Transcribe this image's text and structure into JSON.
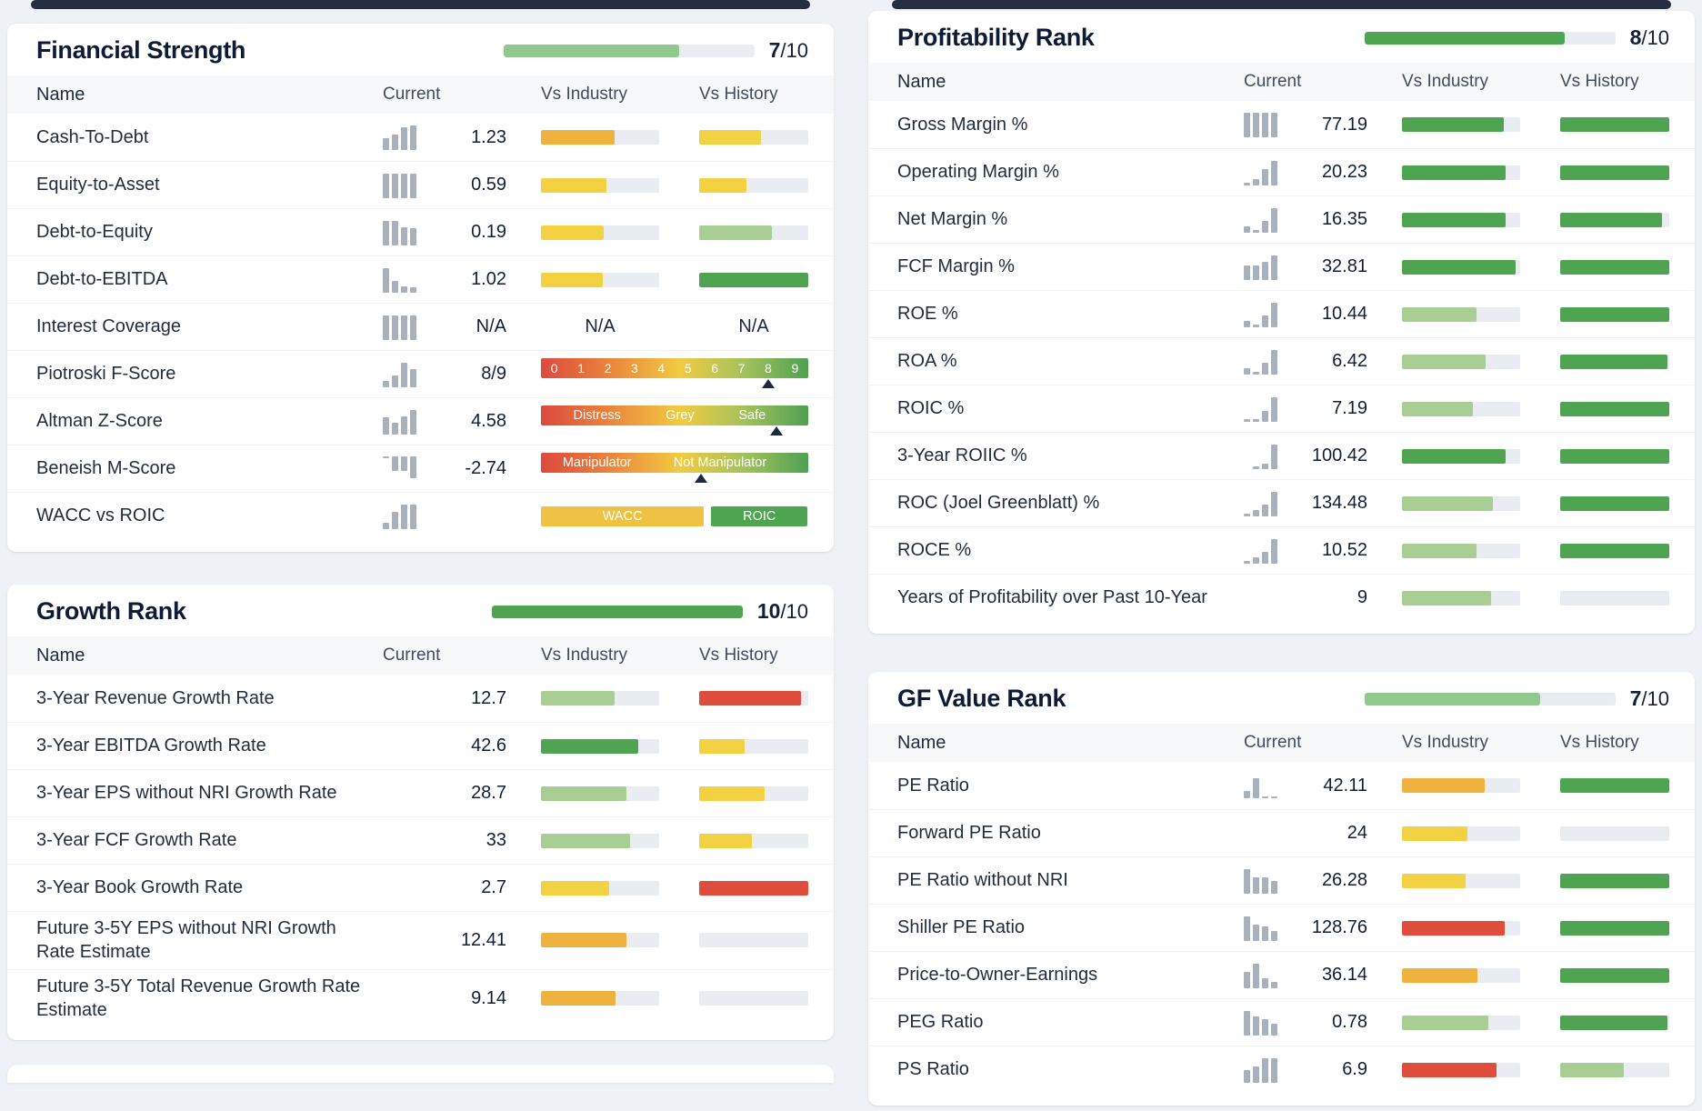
{
  "colors": {
    "green": "#4FA452",
    "lightgreen": "#A8CE93",
    "yellow": "#F2D243",
    "orange": "#F0B23E",
    "red": "#DF4E3C",
    "none": "transparent",
    "track": "#E9ECF1",
    "spark": "#A9B1BC",
    "marker": "#1C2940",
    "wacc": "#F0C244",
    "roic": "#4FA452",
    "score_lightgreen": "#8FC98C",
    "score_green": "#4FA452"
  },
  "table_headers": {
    "name": "Name",
    "current": "Current",
    "vs_industry": "Vs Industry",
    "vs_history": "Vs History"
  },
  "panels": [
    {
      "title": "Financial Strength",
      "score": "7",
      "score_suffix": "/10",
      "score_pct": 70,
      "score_color": "score_lightgreen",
      "rows": [
        {
          "name": "Cash-To-Debt",
          "spark": [
            45,
            60,
            90,
            95
          ],
          "value": "1.23",
          "industry": {
            "kind": "bar",
            "color": "orange",
            "pct": 62
          },
          "history": {
            "kind": "bar",
            "color": "yellow",
            "pct": 57
          }
        },
        {
          "name": "Equity-to-Asset",
          "spark": [
            95,
            95,
            95,
            95
          ],
          "value": "0.59",
          "industry": {
            "kind": "bar",
            "color": "yellow",
            "pct": 55
          },
          "history": {
            "kind": "bar",
            "color": "yellow",
            "pct": 43
          }
        },
        {
          "name": "Debt-to-Equity",
          "spark": [
            95,
            95,
            70,
            65
          ],
          "value": "0.19",
          "industry": {
            "kind": "bar",
            "color": "yellow",
            "pct": 53
          },
          "history": {
            "kind": "bar",
            "color": "lightgreen",
            "pct": 67
          }
        },
        {
          "name": "Debt-to-EBITDA",
          "spark": [
            95,
            45,
            22,
            20
          ],
          "value": "1.02",
          "industry": {
            "kind": "bar",
            "color": "yellow",
            "pct": 52
          },
          "history": {
            "kind": "bar",
            "color": "green",
            "pct": 100
          }
        },
        {
          "name": "Interest Coverage",
          "spark": [
            95,
            95,
            95,
            95
          ],
          "value": "N/A",
          "industry": {
            "kind": "text",
            "text": "N/A"
          },
          "history": {
            "kind": "text",
            "text": "N/A"
          }
        },
        {
          "name": "Piotroski F-Score",
          "spark": [
            25,
            45,
            95,
            70
          ],
          "value": "8/9",
          "scale": {
            "numbers": [
              "0",
              "1",
              "2",
              "3",
              "4",
              "5",
              "6",
              "7",
              "8",
              "9"
            ],
            "marker_pct": 85
          }
        },
        {
          "name": "Altman Z-Score",
          "spark": [
            65,
            45,
            70,
            95
          ],
          "value": "4.58",
          "scale": {
            "labels": [
              {
                "text": "Distress",
                "pct": 21
              },
              {
                "text": "Grey",
                "pct": 52
              },
              {
                "text": "Safe",
                "pct": 79
              }
            ],
            "marker_pct": 88
          }
        },
        {
          "name": "Beneish M-Score",
          "spark": [
            10,
            60,
            60,
            88
          ],
          "spark_inverted": true,
          "value": "-2.74",
          "scale": {
            "labels": [
              {
                "text": "Manipulator",
                "pct": 21
              },
              {
                "text": "Not Manipulator",
                "pct": 67
              }
            ],
            "marker_pct": 60
          }
        },
        {
          "name": "WACC vs ROIC",
          "spark": [
            25,
            65,
            95,
            95
          ],
          "value": "",
          "dual": {
            "left_label": "WACC",
            "right_label": "ROIC",
            "left_pct": 61,
            "right_pct": 36
          }
        }
      ]
    },
    {
      "title": "Profitability Rank",
      "score": "8",
      "score_suffix": "/10",
      "score_pct": 80,
      "score_color": "score_green",
      "rows": [
        {
          "name": "Gross Margin %",
          "spark": [
            95,
            95,
            95,
            95
          ],
          "value": "77.19",
          "industry": {
            "kind": "bar",
            "color": "green",
            "pct": 86
          },
          "history": {
            "kind": "bar",
            "color": "green",
            "pct": 100
          }
        },
        {
          "name": "Operating Margin %",
          "spark": [
            8,
            25,
            62,
            95
          ],
          "value": "20.23",
          "industry": {
            "kind": "bar",
            "color": "green",
            "pct": 88
          },
          "history": {
            "kind": "bar",
            "color": "green",
            "pct": 100
          }
        },
        {
          "name": "Net Margin %",
          "spark": [
            25,
            8,
            45,
            95
          ],
          "value": "16.35",
          "industry": {
            "kind": "bar",
            "color": "green",
            "pct": 88
          },
          "history": {
            "kind": "bar",
            "color": "green",
            "pct": 93
          }
        },
        {
          "name": "FCF Margin %",
          "spark": [
            55,
            55,
            70,
            95
          ],
          "value": "32.81",
          "industry": {
            "kind": "bar",
            "color": "green",
            "pct": 96
          },
          "history": {
            "kind": "bar",
            "color": "green",
            "pct": 100
          }
        },
        {
          "name": "ROE %",
          "spark": [
            25,
            8,
            45,
            95
          ],
          "value": "10.44",
          "industry": {
            "kind": "bar",
            "color": "lightgreen",
            "pct": 63
          },
          "history": {
            "kind": "bar",
            "color": "green",
            "pct": 100
          }
        },
        {
          "name": "ROA %",
          "spark": [
            25,
            8,
            45,
            95
          ],
          "value": "6.42",
          "industry": {
            "kind": "bar",
            "color": "lightgreen",
            "pct": 71
          },
          "history": {
            "kind": "bar",
            "color": "green",
            "pct": 98
          }
        },
        {
          "name": "ROIC %",
          "spark": [
            10,
            10,
            40,
            95
          ],
          "value": "7.19",
          "industry": {
            "kind": "bar",
            "color": "lightgreen",
            "pct": 60
          },
          "history": {
            "kind": "bar",
            "color": "green",
            "pct": 100
          }
        },
        {
          "name": "3-Year ROIIC %",
          "spark": [
            0,
            8,
            20,
            95
          ],
          "value": "100.42",
          "industry": {
            "kind": "bar",
            "color": "green",
            "pct": 88
          },
          "history": {
            "kind": "bar",
            "color": "green",
            "pct": 100
          }
        },
        {
          "name": "ROC (Joel Greenblatt) %",
          "spark": [
            10,
            22,
            45,
            95
          ],
          "value": "134.48",
          "industry": {
            "kind": "bar",
            "color": "lightgreen",
            "pct": 77
          },
          "history": {
            "kind": "bar",
            "color": "green",
            "pct": 100
          }
        },
        {
          "name": "ROCE %",
          "spark": [
            10,
            22,
            45,
            95
          ],
          "value": "10.52",
          "industry": {
            "kind": "bar",
            "color": "lightgreen",
            "pct": 63
          },
          "history": {
            "kind": "bar",
            "color": "green",
            "pct": 100
          }
        },
        {
          "name": "Years of Profitability over Past 10-Year",
          "spark": null,
          "value": "9",
          "industry": {
            "kind": "bar",
            "color": "lightgreen",
            "pct": 75
          },
          "history": {
            "kind": "bar",
            "color": "none",
            "pct": 0
          }
        }
      ]
    },
    {
      "title": "Growth Rank",
      "score": "10",
      "score_suffix": "/10",
      "score_pct": 100,
      "score_color": "score_green",
      "rows": [
        {
          "name": "3-Year Revenue Growth Rate",
          "spark": null,
          "value": "12.7",
          "industry": {
            "kind": "bar",
            "color": "lightgreen",
            "pct": 62
          },
          "history": {
            "kind": "bar",
            "color": "red",
            "pct": 93
          }
        },
        {
          "name": "3-Year EBITDA Growth Rate",
          "spark": null,
          "value": "42.6",
          "industry": {
            "kind": "bar",
            "color": "green",
            "pct": 82
          },
          "history": {
            "kind": "bar",
            "color": "yellow",
            "pct": 42
          }
        },
        {
          "name": "3-Year EPS without NRI Growth Rate",
          "spark": null,
          "value": "28.7",
          "industry": {
            "kind": "bar",
            "color": "lightgreen",
            "pct": 72
          },
          "history": {
            "kind": "bar",
            "color": "yellow",
            "pct": 60
          }
        },
        {
          "name": "3-Year FCF Growth Rate",
          "spark": null,
          "value": "33",
          "industry": {
            "kind": "bar",
            "color": "lightgreen",
            "pct": 75
          },
          "history": {
            "kind": "bar",
            "color": "yellow",
            "pct": 48
          }
        },
        {
          "name": "3-Year Book Growth Rate",
          "spark": null,
          "value": "2.7",
          "industry": {
            "kind": "bar",
            "color": "yellow",
            "pct": 58
          },
          "history": {
            "kind": "bar",
            "color": "red",
            "pct": 100
          }
        },
        {
          "name": "Future 3-5Y EPS without NRI Growth Rate Estimate",
          "spark": null,
          "value": "12.41",
          "industry": {
            "kind": "bar",
            "color": "orange",
            "pct": 72
          },
          "history": {
            "kind": "bar",
            "color": "none",
            "pct": 0
          }
        },
        {
          "name": "Future 3-5Y Total Revenue Growth Rate Estimate",
          "spark": null,
          "value": "9.14",
          "industry": {
            "kind": "bar",
            "color": "orange",
            "pct": 63
          },
          "history": {
            "kind": "bar",
            "color": "none",
            "pct": 0
          }
        }
      ]
    },
    {
      "title": "GF Value Rank",
      "score": "7",
      "score_suffix": "/10",
      "score_pct": 70,
      "score_color": "score_lightgreen",
      "rows": [
        {
          "name": "PE Ratio",
          "spark": [
            28,
            78,
            8,
            8
          ],
          "value": "42.11",
          "industry": {
            "kind": "bar",
            "color": "orange",
            "pct": 70
          },
          "history": {
            "kind": "bar",
            "color": "green",
            "pct": 100
          }
        },
        {
          "name": "Forward PE Ratio",
          "spark": null,
          "value": "24",
          "industry": {
            "kind": "bar",
            "color": "yellow",
            "pct": 55
          },
          "history": {
            "kind": "bar",
            "color": "none",
            "pct": 0
          }
        },
        {
          "name": "PE Ratio without NRI",
          "spark": [
            95,
            62,
            62,
            48
          ],
          "value": "26.28",
          "industry": {
            "kind": "bar",
            "color": "yellow",
            "pct": 54
          },
          "history": {
            "kind": "bar",
            "color": "green",
            "pct": 100
          }
        },
        {
          "name": "Shiller PE Ratio",
          "spark": [
            95,
            62,
            55,
            38
          ],
          "value": "128.76",
          "industry": {
            "kind": "bar",
            "color": "red",
            "pct": 87
          },
          "history": {
            "kind": "bar",
            "color": "green",
            "pct": 100
          }
        },
        {
          "name": "Price-to-Owner-Earnings",
          "spark": [
            62,
            95,
            38,
            25
          ],
          "value": "36.14",
          "industry": {
            "kind": "bar",
            "color": "orange",
            "pct": 64
          },
          "history": {
            "kind": "bar",
            "color": "green",
            "pct": 100
          }
        },
        {
          "name": "PEG Ratio",
          "spark": [
            95,
            72,
            62,
            45
          ],
          "value": "0.78",
          "industry": {
            "kind": "bar",
            "color": "lightgreen",
            "pct": 73
          },
          "history": {
            "kind": "bar",
            "color": "green",
            "pct": 98
          }
        },
        {
          "name": "PS Ratio",
          "spark": [
            48,
            62,
            95,
            95
          ],
          "value": "6.9",
          "industry": {
            "kind": "bar",
            "color": "red",
            "pct": 80
          },
          "history": {
            "kind": "bar",
            "color": "lightgreen",
            "pct": 58
          }
        }
      ]
    }
  ]
}
